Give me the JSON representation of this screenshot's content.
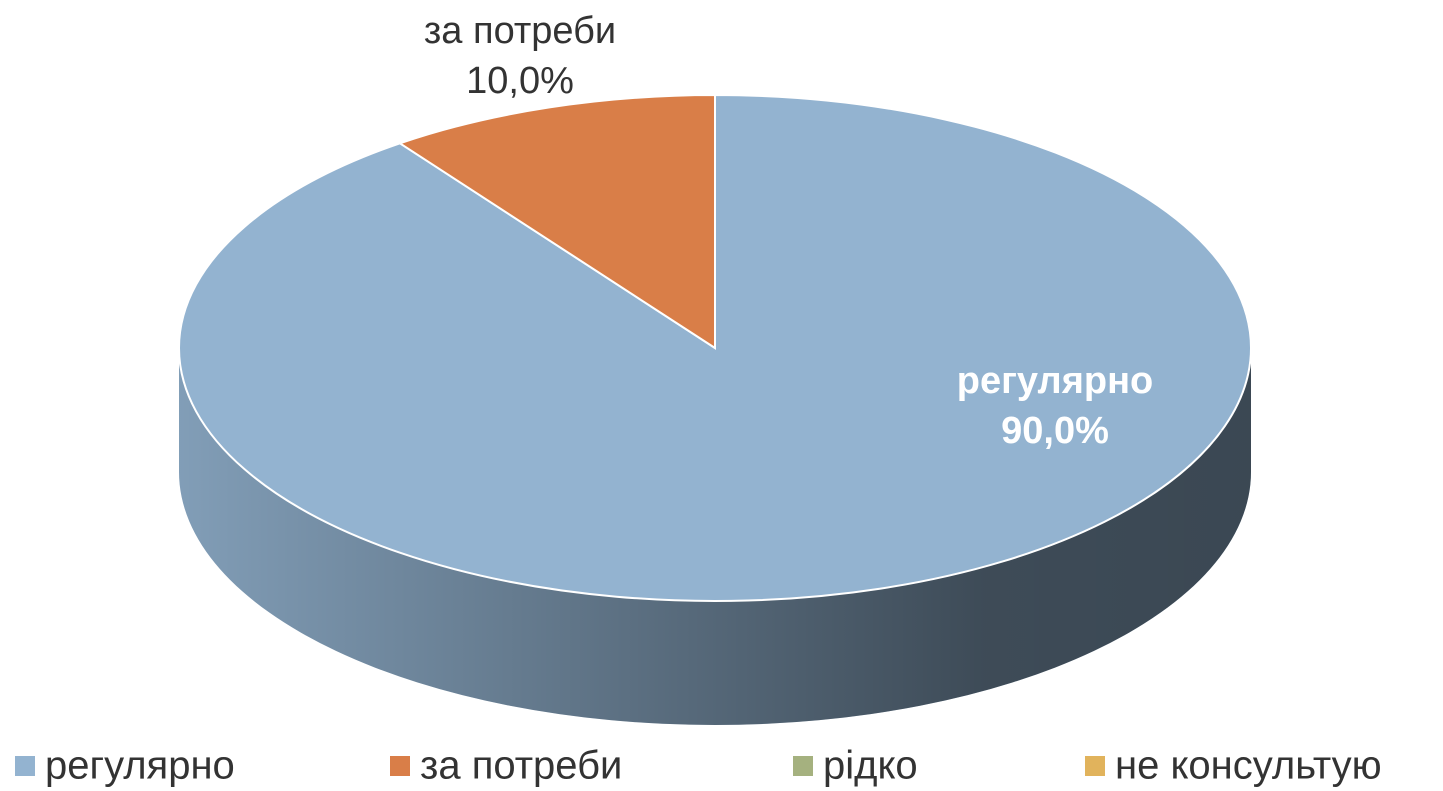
{
  "chart_data": {
    "type": "pie",
    "categories": [
      "регулярно",
      "за потреби",
      "рідко",
      "не консультую"
    ],
    "values": [
      90,
      10,
      0,
      0
    ],
    "value_labels": [
      "90,0%",
      "10,0%",
      null,
      null
    ],
    "colors": [
      "#93b3d0",
      "#d97e48",
      "#a5b17f",
      "#e1b35c"
    ],
    "legend": "bottom"
  }
}
